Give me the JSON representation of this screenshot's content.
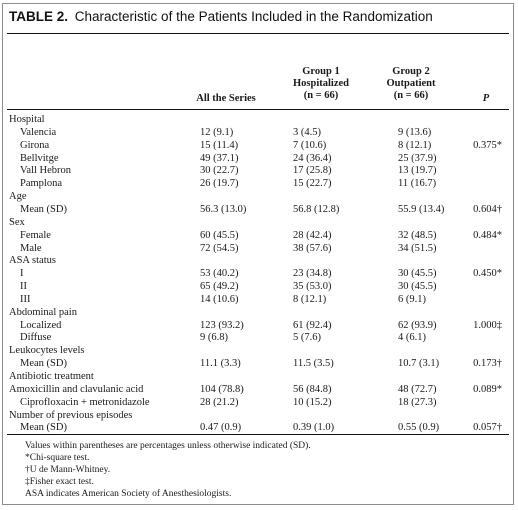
{
  "title": {
    "label": "TABLE 2.",
    "text": "Characteristic of the Patients Included in the Randomization"
  },
  "headers": {
    "all": "All the Series",
    "group1": [
      "Group 1",
      "Hospitalized",
      "(n = 66)"
    ],
    "group2": [
      "Group 2",
      "Outpatient",
      "(n = 66)"
    ],
    "p": "P"
  },
  "rows": [
    {
      "label": "Hospital",
      "indent": false,
      "all": "",
      "g1": "",
      "g2": "",
      "p": ""
    },
    {
      "label": "Valencia",
      "indent": true,
      "all": "12 (9.1)",
      "g1": "3 (4.5)",
      "g2": "9 (13.6)",
      "p": ""
    },
    {
      "label": "Girona",
      "indent": true,
      "all": "15 (11.4)",
      "g1": "7 (10.6)",
      "g2": "8 (12.1)",
      "p": "0.375*"
    },
    {
      "label": "Bellvitge",
      "indent": true,
      "all": "49 (37.1)",
      "g1": "24 (36.4)",
      "g2": "25 (37.9)",
      "p": ""
    },
    {
      "label": "Vall Hebron",
      "indent": true,
      "all": "30 (22.7)",
      "g1": "17 (25.8)",
      "g2": "13 (19.7)",
      "p": ""
    },
    {
      "label": "Pamplona",
      "indent": true,
      "all": "26 (19.7)",
      "g1": "15 (22.7)",
      "g2": "11 (16.7)",
      "p": ""
    },
    {
      "label": "Age",
      "indent": false,
      "all": "",
      "g1": "",
      "g2": "",
      "p": ""
    },
    {
      "label": "Mean (SD)",
      "indent": true,
      "all": "56.3 (13.0)",
      "g1": "56.8 (12.8)",
      "g2": "55.9 (13.4)",
      "p": "0.604†"
    },
    {
      "label": "Sex",
      "indent": false,
      "all": "",
      "g1": "",
      "g2": "",
      "p": ""
    },
    {
      "label": "Female",
      "indent": true,
      "all": "60 (45.5)",
      "g1": "28 (42.4)",
      "g2": "32 (48.5)",
      "p": "0.484*"
    },
    {
      "label": "Male",
      "indent": true,
      "all": "72 (54.5)",
      "g1": "38 (57.6)",
      "g2": "34 (51.5)",
      "p": ""
    },
    {
      "label": "ASA status",
      "indent": false,
      "all": "",
      "g1": "",
      "g2": "",
      "p": ""
    },
    {
      "label": "I",
      "indent": true,
      "all": "53 (40.2)",
      "g1": "23 (34.8)",
      "g2": "30 (45.5)",
      "p": "0.450*"
    },
    {
      "label": "II",
      "indent": true,
      "all": "65 (49.2)",
      "g1": "35 (53.0)",
      "g2": "30 (45.5)",
      "p": ""
    },
    {
      "label": "III",
      "indent": true,
      "all": "14 (10.6)",
      "g1": "8 (12.1)",
      "g2": "6 (9.1)",
      "p": ""
    },
    {
      "label": "Abdominal pain",
      "indent": false,
      "all": "",
      "g1": "",
      "g2": "",
      "p": ""
    },
    {
      "label": "Localized",
      "indent": true,
      "all": "123 (93.2)",
      "g1": "61 (92.4)",
      "g2": "62 (93.9)",
      "p": "1.000‡"
    },
    {
      "label": "Diffuse",
      "indent": true,
      "all": "9 (6.8)",
      "g1": "5 (7.6)",
      "g2": "4 (6.1)",
      "p": ""
    },
    {
      "label": "Leukocytes levels",
      "indent": false,
      "all": "",
      "g1": "",
      "g2": "",
      "p": ""
    },
    {
      "label": "Mean (SD)",
      "indent": true,
      "all": "11.1 (3.3)",
      "g1": "11.5 (3.5)",
      "g2": "10.7 (3.1)",
      "p": "0.173†"
    },
    {
      "label": "Antibiotic treatment",
      "indent": false,
      "all": "",
      "g1": "",
      "g2": "",
      "p": ""
    },
    {
      "label": "Amoxicillin and clavulanic acid",
      "indent": false,
      "all": "104 (78.8)",
      "g1": "56 (84.8)",
      "g2": "48 (72.7)",
      "p": "0.089*"
    },
    {
      "label": "Ciprofloxacin + metronidazole",
      "indent": true,
      "all": "28 (21.2)",
      "g1": "10 (15.2)",
      "g2": "18 (27.3)",
      "p": ""
    },
    {
      "label": "Number of previous episodes",
      "indent": false,
      "all": "",
      "g1": "",
      "g2": "",
      "p": ""
    },
    {
      "label": "Mean (SD)",
      "indent": true,
      "all": "0.47 (0.9)",
      "g1": "0.39 (1.0)",
      "g2": "0.55 (0.9)",
      "p": "0.057†"
    }
  ],
  "footnotes": [
    "Values within parentheses are percentages unless otherwise indicated (SD).",
    "*Chi-square test.",
    "†U de Mann-Whitney.",
    "‡Fisher exact test.",
    "ASA indicates American Society of Anesthesiologists."
  ]
}
